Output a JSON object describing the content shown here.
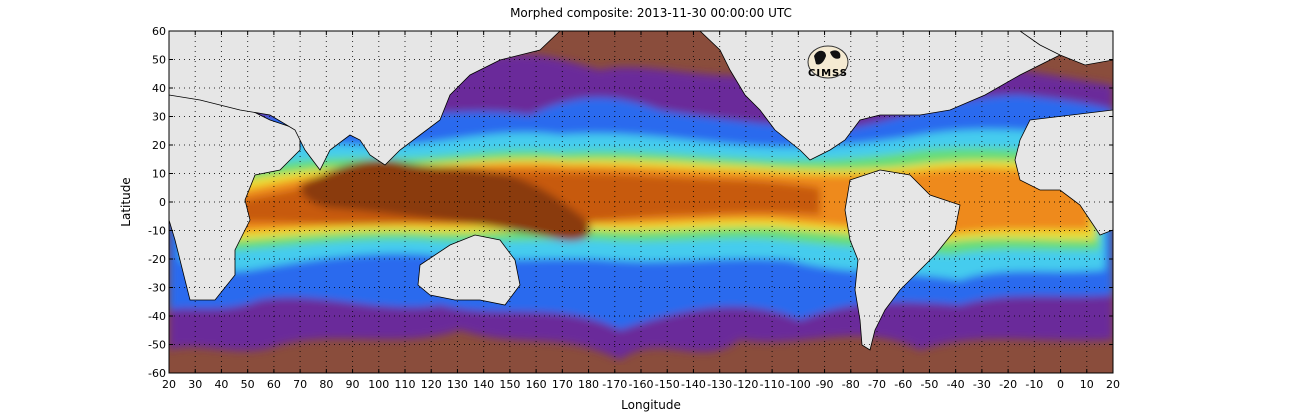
{
  "chart_data": {
    "type": "heatmap",
    "title": "Morphed composite: 2013-11-30 00:00:00 UTC",
    "xlabel": "Longitude",
    "ylabel": "Latitude",
    "x_tick_labels": [
      "20",
      "30",
      "40",
      "50",
      "60",
      "70",
      "80",
      "90",
      "100",
      "110",
      "120",
      "130",
      "140",
      "150",
      "160",
      "170",
      "180",
      "-170",
      "-160",
      "-150",
      "-140",
      "-130",
      "-120",
      "-110",
      "-100",
      "-90",
      "-80",
      "-70",
      "-60",
      "-50",
      "-40",
      "-30",
      "-20",
      "-10",
      "0",
      "10",
      "20"
    ],
    "y_tick_labels": [
      "60",
      "50",
      "40",
      "30",
      "20",
      "10",
      "0",
      "-10",
      "-20",
      "-30",
      "-40",
      "-50",
      "-60"
    ],
    "xlim": [
      20,
      380
    ],
    "ylim": [
      -60,
      60
    ],
    "grid": "dotted",
    "colors": {
      "land": "#e6e6e6",
      "dry": "#8a4d3c",
      "purple": "#6a2a9a",
      "blue": "#2a6aee",
      "cyan": "#44ccee",
      "green": "#66dd77",
      "yellow": "#eedd33",
      "orange": "#ee8a1a",
      "dark_orange": "#c75a10",
      "brown": "#8a3a0a"
    }
  },
  "logo": {
    "text": "CIMSS",
    "icon": "cimss-logo-icon"
  }
}
